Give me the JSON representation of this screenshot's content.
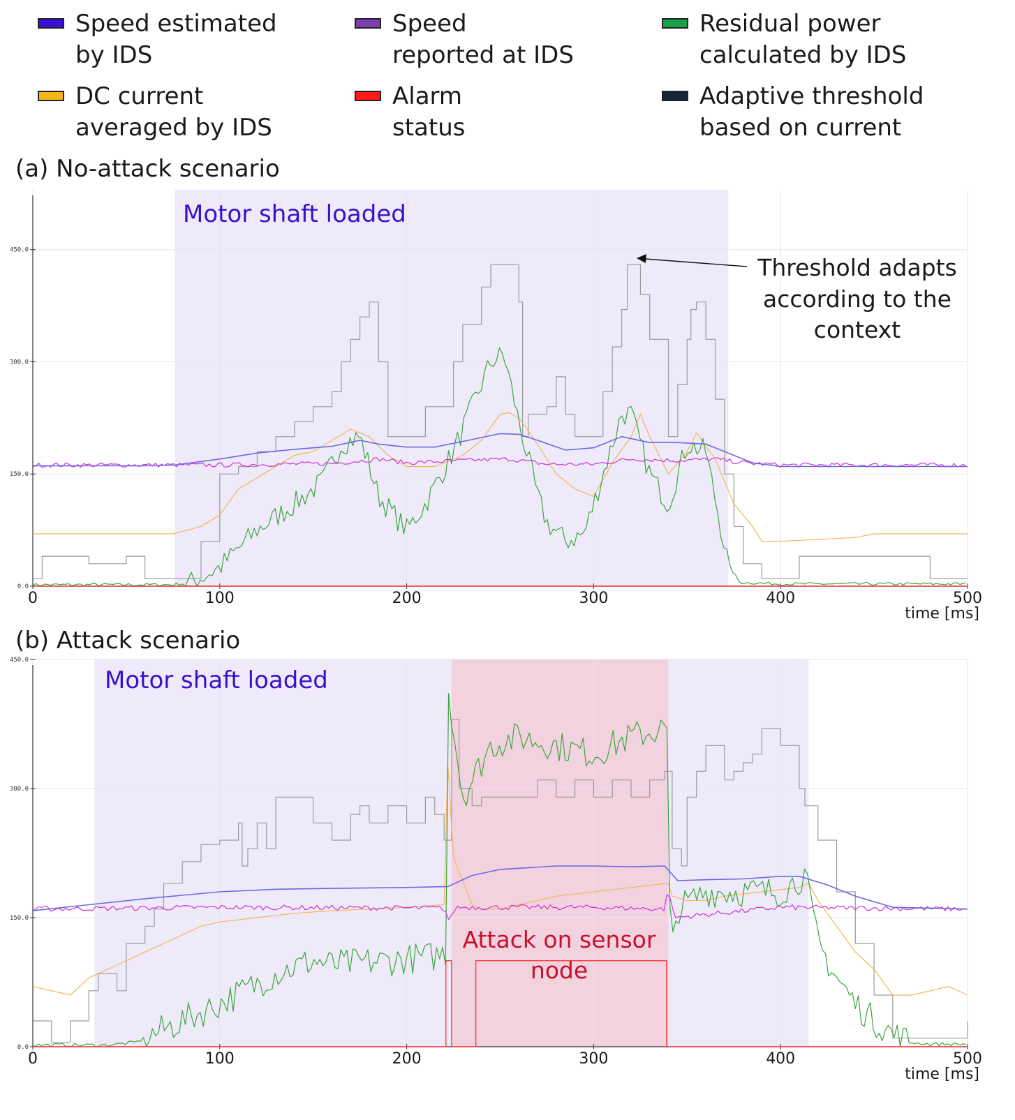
{
  "legend": [
    {
      "label": "Speed estimated\nby IDS",
      "color": "#3a10d8"
    },
    {
      "label": "Speed\nreported at IDS",
      "color": "#7b3fb0"
    },
    {
      "label": "Residual power\ncalculated by IDS",
      "color": "#16a34a"
    },
    {
      "label": "DC current\naveraged by IDS",
      "color": "#f5b51b"
    },
    {
      "label": "Alarm\nstatus",
      "color": "#ff1a1a"
    },
    {
      "label": "Adaptive threshold\nbased on current",
      "color": "#13233a"
    }
  ],
  "panel_a": {
    "title": "(a) No-attack scenario",
    "shade_label": "Motor shaft loaded",
    "annotation_lines": [
      "Threshold adapts",
      "according to the",
      "context"
    ]
  },
  "panel_b": {
    "title": "(b) Attack scenario",
    "shade_label": "Motor shaft loaded",
    "attack_lines": [
      "Attack on sensor",
      "node"
    ]
  },
  "chart_data": [
    {
      "type": "line",
      "title": "(a) No-attack scenario",
      "xlabel": "time [ms]",
      "xlim": [
        0,
        505
      ],
      "ylim": [
        0,
        530
      ],
      "xticks": [
        0,
        100,
        200,
        300,
        400,
        500
      ],
      "yticks": [
        0,
        150,
        300,
        450
      ],
      "ytick_labels": [
        "0.0",
        "150.0",
        "300.0",
        "450.0"
      ],
      "regions": [
        {
          "label": "Motor shaft loaded",
          "x": [
            76,
            372
          ],
          "color": "#efeafa"
        }
      ],
      "series": [
        {
          "name": "Speed estimated by IDS",
          "color": "#6a6adf",
          "width": 1.6,
          "x": [
            0,
            60,
            76,
            100,
            120,
            140,
            160,
            175,
            185,
            200,
            215,
            235,
            250,
            260,
            270,
            285,
            300,
            315,
            330,
            345,
            360,
            372,
            385,
            400,
            450,
            500
          ],
          "y": [
            161,
            161,
            162,
            170,
            178,
            183,
            187,
            195,
            190,
            186,
            186,
            196,
            204,
            203,
            195,
            182,
            185,
            200,
            192,
            192,
            190,
            178,
            165,
            160,
            160,
            160
          ]
        },
        {
          "name": "Speed reported at IDS",
          "color": "#d02fd6",
          "width": 1.2,
          "noise": 3,
          "x": [
            0,
            100,
            160,
            185,
            200,
            230,
            255,
            275,
            300,
            320,
            345,
            365,
            380,
            400,
            500
          ],
          "y": [
            162,
            162,
            164,
            170,
            165,
            168,
            170,
            163,
            163,
            170,
            168,
            170,
            165,
            162,
            162
          ]
        },
        {
          "name": "Residual power calculated by IDS",
          "color": "#3aa53a",
          "width": 1.2,
          "noise": 16,
          "noiseStart": 80,
          "noiseEnd": 372,
          "x": [
            0,
            75,
            85,
            100,
            120,
            140,
            155,
            165,
            175,
            185,
            195,
            200,
            210,
            225,
            235,
            245,
            252,
            260,
            270,
            275,
            285,
            295,
            305,
            315,
            320,
            330,
            340,
            350,
            360,
            372,
            378,
            400,
            500
          ],
          "y": [
            2,
            2,
            5,
            25,
            75,
            110,
            140,
            190,
            200,
            120,
            90,
            75,
            110,
            180,
            240,
            300,
            310,
            220,
            120,
            85,
            60,
            70,
            150,
            230,
            230,
            150,
            110,
            190,
            180,
            30,
            5,
            3,
            3
          ]
        },
        {
          "name": "DC current averaged by IDS",
          "color": "#f5b553",
          "width": 1.2,
          "x": [
            0,
            75,
            90,
            100,
            110,
            120,
            130,
            140,
            150,
            160,
            170,
            180,
            190,
            200,
            215,
            230,
            240,
            250,
            255,
            260,
            270,
            280,
            290,
            300,
            310,
            320,
            325,
            330,
            340,
            350,
            355,
            365,
            375,
            385,
            390,
            400,
            440,
            450,
            500
          ],
          "y": [
            70,
            70,
            80,
            95,
            130,
            145,
            160,
            175,
            180,
            195,
            210,
            200,
            175,
            160,
            160,
            175,
            195,
            230,
            232,
            225,
            190,
            150,
            130,
            120,
            165,
            200,
            230,
            200,
            150,
            180,
            205,
            170,
            110,
            80,
            60,
            60,
            65,
            70,
            70
          ]
        },
        {
          "name": "Alarm status",
          "color": "#ff3b3b",
          "width": 1.4,
          "x": [
            0,
            505
          ],
          "y": [
            0,
            0
          ]
        },
        {
          "name": "Adaptive threshold based on current",
          "color": "#9a9a9a",
          "width": 1.2,
          "step": true,
          "x": [
            0,
            5,
            20,
            30,
            40,
            50,
            60,
            75,
            90,
            100,
            110,
            120,
            130,
            140,
            150,
            160,
            165,
            170,
            175,
            180,
            185,
            190,
            200,
            210,
            225,
            230,
            240,
            245,
            250,
            260,
            262,
            265,
            270,
            275,
            280,
            285,
            290,
            300,
            305,
            310,
            315,
            318,
            322,
            325,
            330,
            340,
            345,
            350,
            352,
            355,
            360,
            365,
            370,
            375,
            380,
            390,
            400,
            410,
            450,
            480,
            500
          ],
          "y": [
            10,
            40,
            40,
            30,
            30,
            40,
            10,
            10,
            60,
            150,
            160,
            180,
            200,
            220,
            240,
            260,
            300,
            330,
            360,
            380,
            300,
            200,
            200,
            240,
            300,
            350,
            400,
            430,
            430,
            380,
            200,
            230,
            230,
            240,
            280,
            230,
            200,
            200,
            260,
            320,
            370,
            430,
            430,
            390,
            330,
            200,
            270,
            330,
            370,
            380,
            330,
            250,
            150,
            80,
            30,
            10,
            10,
            40,
            40,
            10,
            10
          ]
        }
      ]
    },
    {
      "type": "line",
      "title": "(b) Attack scenario",
      "xlabel": "time [ms]",
      "xlim": [
        0,
        505
      ],
      "ylim": [
        0,
        450
      ],
      "xticks": [
        0,
        100,
        200,
        300,
        400,
        500
      ],
      "yticks": [
        0,
        150,
        300,
        450
      ],
      "ytick_labels": [
        "0.0",
        "150.0",
        "300.0",
        "450.0"
      ],
      "regions": [
        {
          "label": "Motor shaft loaded",
          "x": [
            33,
            415
          ],
          "color": "#efeafa"
        },
        {
          "label": "Attack on sensor node",
          "x": [
            224,
            340
          ],
          "color": "#f3d2e0"
        }
      ],
      "series": [
        {
          "name": "Speed estimated by IDS",
          "color": "#6a6adf",
          "width": 1.6,
          "x": [
            0,
            30,
            60,
            100,
            130,
            160,
            200,
            220,
            222,
            235,
            250,
            280,
            300,
            320,
            338,
            345,
            360,
            380,
            400,
            410,
            425,
            440,
            460,
            500
          ],
          "y": [
            158,
            165,
            172,
            180,
            183,
            184,
            185,
            186,
            186,
            199,
            206,
            210,
            210,
            209,
            210,
            193,
            194,
            195,
            198,
            198,
            188,
            175,
            162,
            160
          ]
        },
        {
          "name": "Speed reported at IDS",
          "color": "#d02fd6",
          "width": 1.2,
          "noise": 3,
          "x": [
            0,
            100,
            220,
            223,
            226,
            300,
            338,
            340,
            343,
            400,
            500
          ],
          "y": [
            160,
            162,
            161,
            145,
            162,
            162,
            160,
            185,
            150,
            162,
            160
          ]
        },
        {
          "name": "Residual power calculated by IDS",
          "color": "#3aa53a",
          "width": 1.2,
          "noise": 18,
          "noiseStart": 60,
          "noiseEnd": 470,
          "x": [
            0,
            40,
            55,
            70,
            100,
            130,
            150,
            160,
            190,
            215,
            221,
            222,
            230,
            245,
            260,
            280,
            300,
            320,
            338,
            340,
            341,
            345,
            360,
            380,
            400,
            410,
            413,
            420,
            430,
            440,
            450,
            460,
            470,
            480,
            505
          ],
          "y": [
            2,
            2,
            5,
            20,
            50,
            85,
            100,
            95,
            100,
            105,
            110,
            420,
            290,
            350,
            360,
            350,
            340,
            360,
            370,
            360,
            100,
            160,
            180,
            180,
            180,
            195,
            200,
            120,
            80,
            50,
            30,
            15,
            5,
            3,
            3
          ]
        },
        {
          "name": "DC current averaged by IDS",
          "color": "#f5b553",
          "width": 1.2,
          "x": [
            0,
            20,
            30,
            40,
            60,
            70,
            80,
            90,
            100,
            120,
            140,
            160,
            180,
            200,
            220,
            222,
            225,
            235,
            240,
            250,
            260,
            280,
            300,
            320,
            340,
            342,
            350,
            360,
            370,
            390,
            410,
            415,
            420,
            430,
            440,
            450,
            460,
            470,
            490,
            500
          ],
          "y": [
            70,
            60,
            80,
            90,
            110,
            120,
            130,
            140,
            145,
            150,
            155,
            158,
            160,
            162,
            165,
            330,
            220,
            165,
            160,
            160,
            165,
            175,
            180,
            185,
            190,
            175,
            170,
            170,
            175,
            180,
            185,
            190,
            170,
            140,
            110,
            90,
            60,
            60,
            70,
            60
          ]
        },
        {
          "name": "Alarm status",
          "color": "#ff3b3b",
          "width": 1.4,
          "x": [
            0,
            221,
            221,
            224,
            224,
            237,
            237,
            339,
            339,
            505
          ],
          "y": [
            0,
            0,
            100,
            100,
            0,
            0,
            100,
            100,
            0,
            0
          ]
        },
        {
          "name": "Adaptive threshold based on current",
          "color": "#9a9a9a",
          "width": 1.2,
          "step": true,
          "x": [
            0,
            10,
            20,
            30,
            35,
            45,
            50,
            60,
            65,
            70,
            80,
            90,
            100,
            110,
            112,
            115,
            120,
            125,
            130,
            140,
            150,
            160,
            170,
            175,
            180,
            190,
            200,
            210,
            215,
            220,
            224,
            228,
            235,
            240,
            250,
            260,
            270,
            280,
            290,
            300,
            310,
            320,
            330,
            338,
            342,
            347,
            350,
            355,
            360,
            370,
            375,
            380,
            385,
            390,
            400,
            410,
            413,
            420,
            430,
            440,
            450,
            460,
            470,
            480,
            490,
            500
          ],
          "y": [
            30,
            5,
            30,
            65,
            85,
            65,
            120,
            140,
            160,
            190,
            215,
            235,
            240,
            260,
            210,
            230,
            260,
            230,
            290,
            290,
            260,
            240,
            270,
            280,
            260,
            280,
            260,
            290,
            270,
            240,
            380,
            300,
            280,
            290,
            290,
            290,
            310,
            290,
            310,
            290,
            310,
            290,
            310,
            320,
            230,
            210,
            290,
            320,
            350,
            310,
            320,
            330,
            340,
            370,
            350,
            300,
            280,
            240,
            180,
            120,
            60,
            10,
            10,
            10,
            10,
            30
          ]
        }
      ]
    }
  ]
}
